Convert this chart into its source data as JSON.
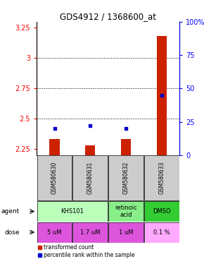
{
  "title": "GDS4912 / 1368600_at",
  "samples": [
    "GSM580630",
    "GSM580631",
    "GSM580632",
    "GSM580633"
  ],
  "bar_values": [
    2.33,
    2.28,
    2.33,
    3.18
  ],
  "percentile_values": [
    20,
    22,
    20,
    45
  ],
  "ylim_left": [
    2.2,
    3.3
  ],
  "ylim_right": [
    0,
    100
  ],
  "yticks_left": [
    2.25,
    2.5,
    2.75,
    3.0,
    3.25
  ],
  "yticks_right": [
    0,
    25,
    50,
    75,
    100
  ],
  "ytick_labels_left": [
    "2.25",
    "2.5",
    "2.75",
    "3",
    "3.25"
  ],
  "ytick_labels_right": [
    "0",
    "25",
    "50",
    "75",
    "100%"
  ],
  "hlines": [
    2.5,
    2.75,
    3.0
  ],
  "bar_color": "#cc2200",
  "dot_color": "#0000cc",
  "agent_colors": [
    "#bbffbb",
    "#88ee88",
    "#33cc33"
  ],
  "dose_colors": [
    "#dd55dd",
    "#dd55dd",
    "#dd55dd",
    "#ffaaff"
  ],
  "dose_labels": [
    "5 uM",
    "1.7 uM",
    "1 uM",
    "0.1 %"
  ],
  "sample_box_color": "#cccccc",
  "legend_bar_color": "#cc2200",
  "legend_dot_color": "#0000cc"
}
